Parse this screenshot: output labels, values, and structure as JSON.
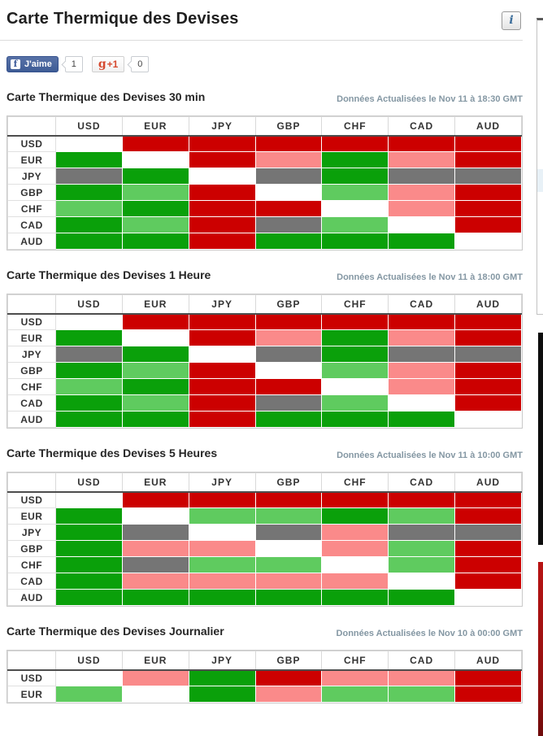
{
  "page": {
    "title": "Carte Thermique des Devises",
    "info_icon": "i"
  },
  "social": {
    "facebook_label": "J'aime",
    "facebook_logo": "f",
    "facebook_count": "1",
    "gplus_g": "g",
    "gplus_plus": "+1",
    "gplus_count": "0"
  },
  "heatmap": {
    "currencies": [
      "USD",
      "EUR",
      "JPY",
      "GBP",
      "CHF",
      "CAD",
      "AUD"
    ],
    "palette": {
      "G": "#0aa00a",
      "L": "#5fcb5f",
      "R": "#cc0000",
      "P": "#fa8a8a",
      "N": "#757575",
      "W": "#ffffff"
    },
    "sections": [
      {
        "title": "Carte Thermique des Devises 30 min",
        "updated": "Données Actualisées le Nov 11 à 18:30 GMT",
        "rows": [
          {
            "currency": "USD",
            "cells": [
              "W",
              "R",
              "R",
              "R",
              "R",
              "R",
              "R"
            ]
          },
          {
            "currency": "EUR",
            "cells": [
              "G",
              "W",
              "R",
              "P",
              "G",
              "P",
              "R"
            ]
          },
          {
            "currency": "JPY",
            "cells": [
              "N",
              "G",
              "W",
              "N",
              "G",
              "N",
              "N"
            ]
          },
          {
            "currency": "GBP",
            "cells": [
              "G",
              "L",
              "R",
              "W",
              "L",
              "P",
              "R"
            ]
          },
          {
            "currency": "CHF",
            "cells": [
              "L",
              "G",
              "R",
              "R",
              "W",
              "P",
              "R"
            ]
          },
          {
            "currency": "CAD",
            "cells": [
              "G",
              "L",
              "R",
              "N",
              "L",
              "W",
              "R"
            ]
          },
          {
            "currency": "AUD",
            "cells": [
              "G",
              "G",
              "R",
              "G",
              "G",
              "G",
              "W"
            ]
          }
        ]
      },
      {
        "title": "Carte Thermique des Devises 1 Heure",
        "updated": "Données Actualisées le Nov 11 à 18:00 GMT",
        "rows": [
          {
            "currency": "USD",
            "cells": [
              "W",
              "R",
              "R",
              "R",
              "R",
              "R",
              "R"
            ]
          },
          {
            "currency": "EUR",
            "cells": [
              "G",
              "W",
              "R",
              "P",
              "G",
              "P",
              "R"
            ]
          },
          {
            "currency": "JPY",
            "cells": [
              "N",
              "G",
              "W",
              "N",
              "G",
              "N",
              "N"
            ]
          },
          {
            "currency": "GBP",
            "cells": [
              "G",
              "L",
              "R",
              "W",
              "L",
              "P",
              "R"
            ]
          },
          {
            "currency": "CHF",
            "cells": [
              "L",
              "G",
              "R",
              "R",
              "W",
              "P",
              "R"
            ]
          },
          {
            "currency": "CAD",
            "cells": [
              "G",
              "L",
              "R",
              "N",
              "L",
              "W",
              "R"
            ]
          },
          {
            "currency": "AUD",
            "cells": [
              "G",
              "G",
              "R",
              "G",
              "G",
              "G",
              "W"
            ]
          }
        ]
      },
      {
        "title": "Carte Thermique des Devises 5 Heures",
        "updated": "Données Actualisées le Nov 11 à 10:00 GMT",
        "rows": [
          {
            "currency": "USD",
            "cells": [
              "W",
              "R",
              "R",
              "R",
              "R",
              "R",
              "R"
            ]
          },
          {
            "currency": "EUR",
            "cells": [
              "G",
              "W",
              "L",
              "L",
              "G",
              "L",
              "R"
            ]
          },
          {
            "currency": "JPY",
            "cells": [
              "G",
              "N",
              "W",
              "N",
              "P",
              "N",
              "N"
            ]
          },
          {
            "currency": "GBP",
            "cells": [
              "G",
              "P",
              "P",
              "W",
              "P",
              "L",
              "R"
            ]
          },
          {
            "currency": "CHF",
            "cells": [
              "G",
              "N",
              "L",
              "L",
              "W",
              "L",
              "R"
            ]
          },
          {
            "currency": "CAD",
            "cells": [
              "G",
              "P",
              "P",
              "P",
              "P",
              "W",
              "R"
            ]
          },
          {
            "currency": "AUD",
            "cells": [
              "G",
              "G",
              "G",
              "G",
              "G",
              "G",
              "W"
            ]
          }
        ]
      },
      {
        "title": "Carte Thermique des Devises Journalier",
        "updated": "Données Actualisées le Nov 10 à 00:00 GMT",
        "rows": [
          {
            "currency": "USD",
            "cells": [
              "W",
              "P",
              "G",
              "R",
              "P",
              "P",
              "R"
            ]
          },
          {
            "currency": "EUR",
            "cells": [
              "L",
              "W",
              "G",
              "P",
              "L",
              "L",
              "R"
            ]
          }
        ]
      }
    ]
  },
  "right_rail": {
    "panel_border": "#c2c2c2",
    "panel_band": "#e8f1f7",
    "dark_block": "#0d0d0d",
    "red_block": "#b81414"
  }
}
